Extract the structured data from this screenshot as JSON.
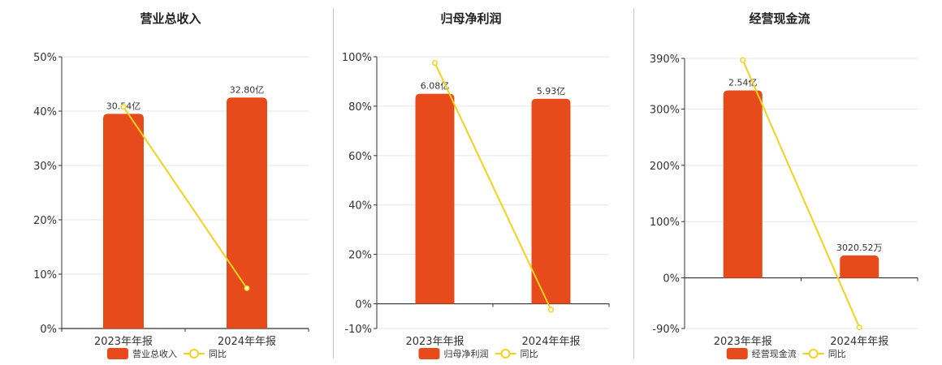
{
  "colors": {
    "bar": "#e84b1b",
    "line": "#f2d21b",
    "grid": "#e6e6e6",
    "axis": "#333333"
  },
  "chart_data": [
    {
      "type": "bar",
      "title": "营业总收入",
      "categories": [
        "2023年年报",
        "2024年年报"
      ],
      "y_ticks": [
        "0%",
        "10%",
        "20%",
        "30%",
        "40%",
        "50%"
      ],
      "ylim": [
        0,
        50
      ],
      "series": [
        {
          "name": "营业总收入",
          "type": "bar",
          "values": [
            39.5,
            42.5
          ],
          "labels": [
            "30.54亿",
            "32.80亿"
          ]
        },
        {
          "name": "同比",
          "type": "line",
          "values": [
            40.8,
            7.4
          ]
        }
      ],
      "grid": true,
      "legend": "bottom"
    },
    {
      "type": "bar",
      "title": "归母净利润",
      "categories": [
        "2023年年报",
        "2024年年报"
      ],
      "y_ticks": [
        "-10%",
        "0%",
        "20%",
        "40%",
        "60%",
        "80%",
        "100%"
      ],
      "ylim": [
        -10,
        100
      ],
      "series": [
        {
          "name": "归母净利润",
          "type": "bar",
          "values": [
            85,
            83
          ],
          "labels": [
            "6.08亿",
            "5.93亿"
          ]
        },
        {
          "name": "同比",
          "type": "line",
          "values": [
            97.5,
            -2.4
          ]
        }
      ],
      "grid": true,
      "legend": "bottom"
    },
    {
      "type": "bar",
      "title": "经营现金流",
      "categories": [
        "2023年年报",
        "2024年年报"
      ],
      "y_ticks": [
        "-90%",
        "0%",
        "100%",
        "200%",
        "300%",
        "390%"
      ],
      "ylim": [
        -90,
        390
      ],
      "series": [
        {
          "name": "经营现金流",
          "type": "bar",
          "values": [
            333,
            40
          ],
          "labels": [
            "2.54亿",
            "3020.52万"
          ]
        },
        {
          "name": "同比",
          "type": "line",
          "values": [
            387,
            -88
          ]
        }
      ],
      "grid": true,
      "legend": "bottom"
    }
  ]
}
